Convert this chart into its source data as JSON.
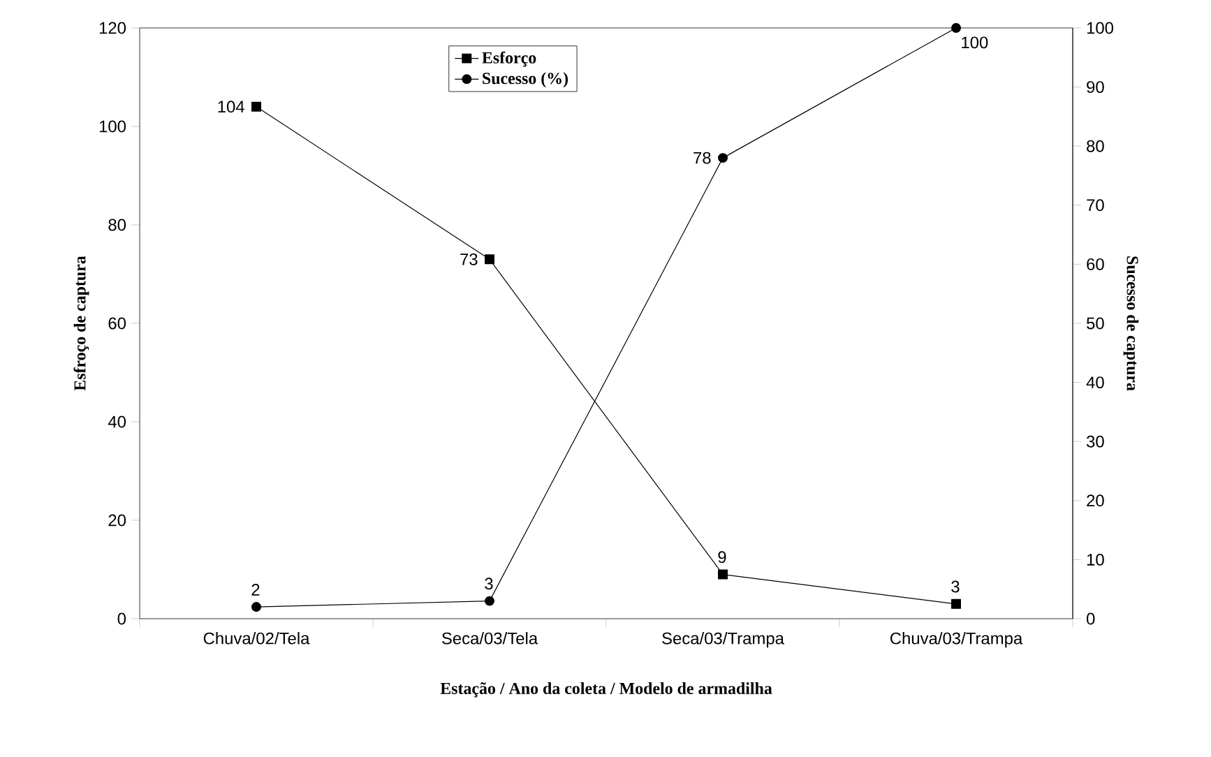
{
  "chart_data": {
    "type": "line",
    "xlabel": "Estação / Ano da coleta / Modelo de armadilha",
    "ylabel": "Esfroço de captura",
    "y2label": "Sucesso de captura",
    "categories": [
      "Chuva/02/Tela",
      "Seca/03/Tela",
      "Seca/03/Trampa",
      "Chuva/03/Trampa"
    ],
    "series": [
      {
        "name": "Esforço",
        "color": "#000000",
        "marker": "square",
        "values": [
          104,
          73,
          9,
          3
        ]
      },
      {
        "name": "Sucesso (%)",
        "color": "#000000",
        "marker": "circle",
        "axis": "y2",
        "values": [
          2,
          3,
          78,
          100
        ]
      }
    ],
    "ylim": [
      0,
      120
    ],
    "yticks": [
      0,
      20,
      40,
      60,
      80,
      100,
      120
    ],
    "y2lim": [
      0,
      100
    ],
    "y2ticks": [
      0,
      10,
      20,
      30,
      40,
      50,
      60,
      70,
      80,
      90,
      100
    ],
    "data_labels": true,
    "legend": "top",
    "grid": false
  }
}
